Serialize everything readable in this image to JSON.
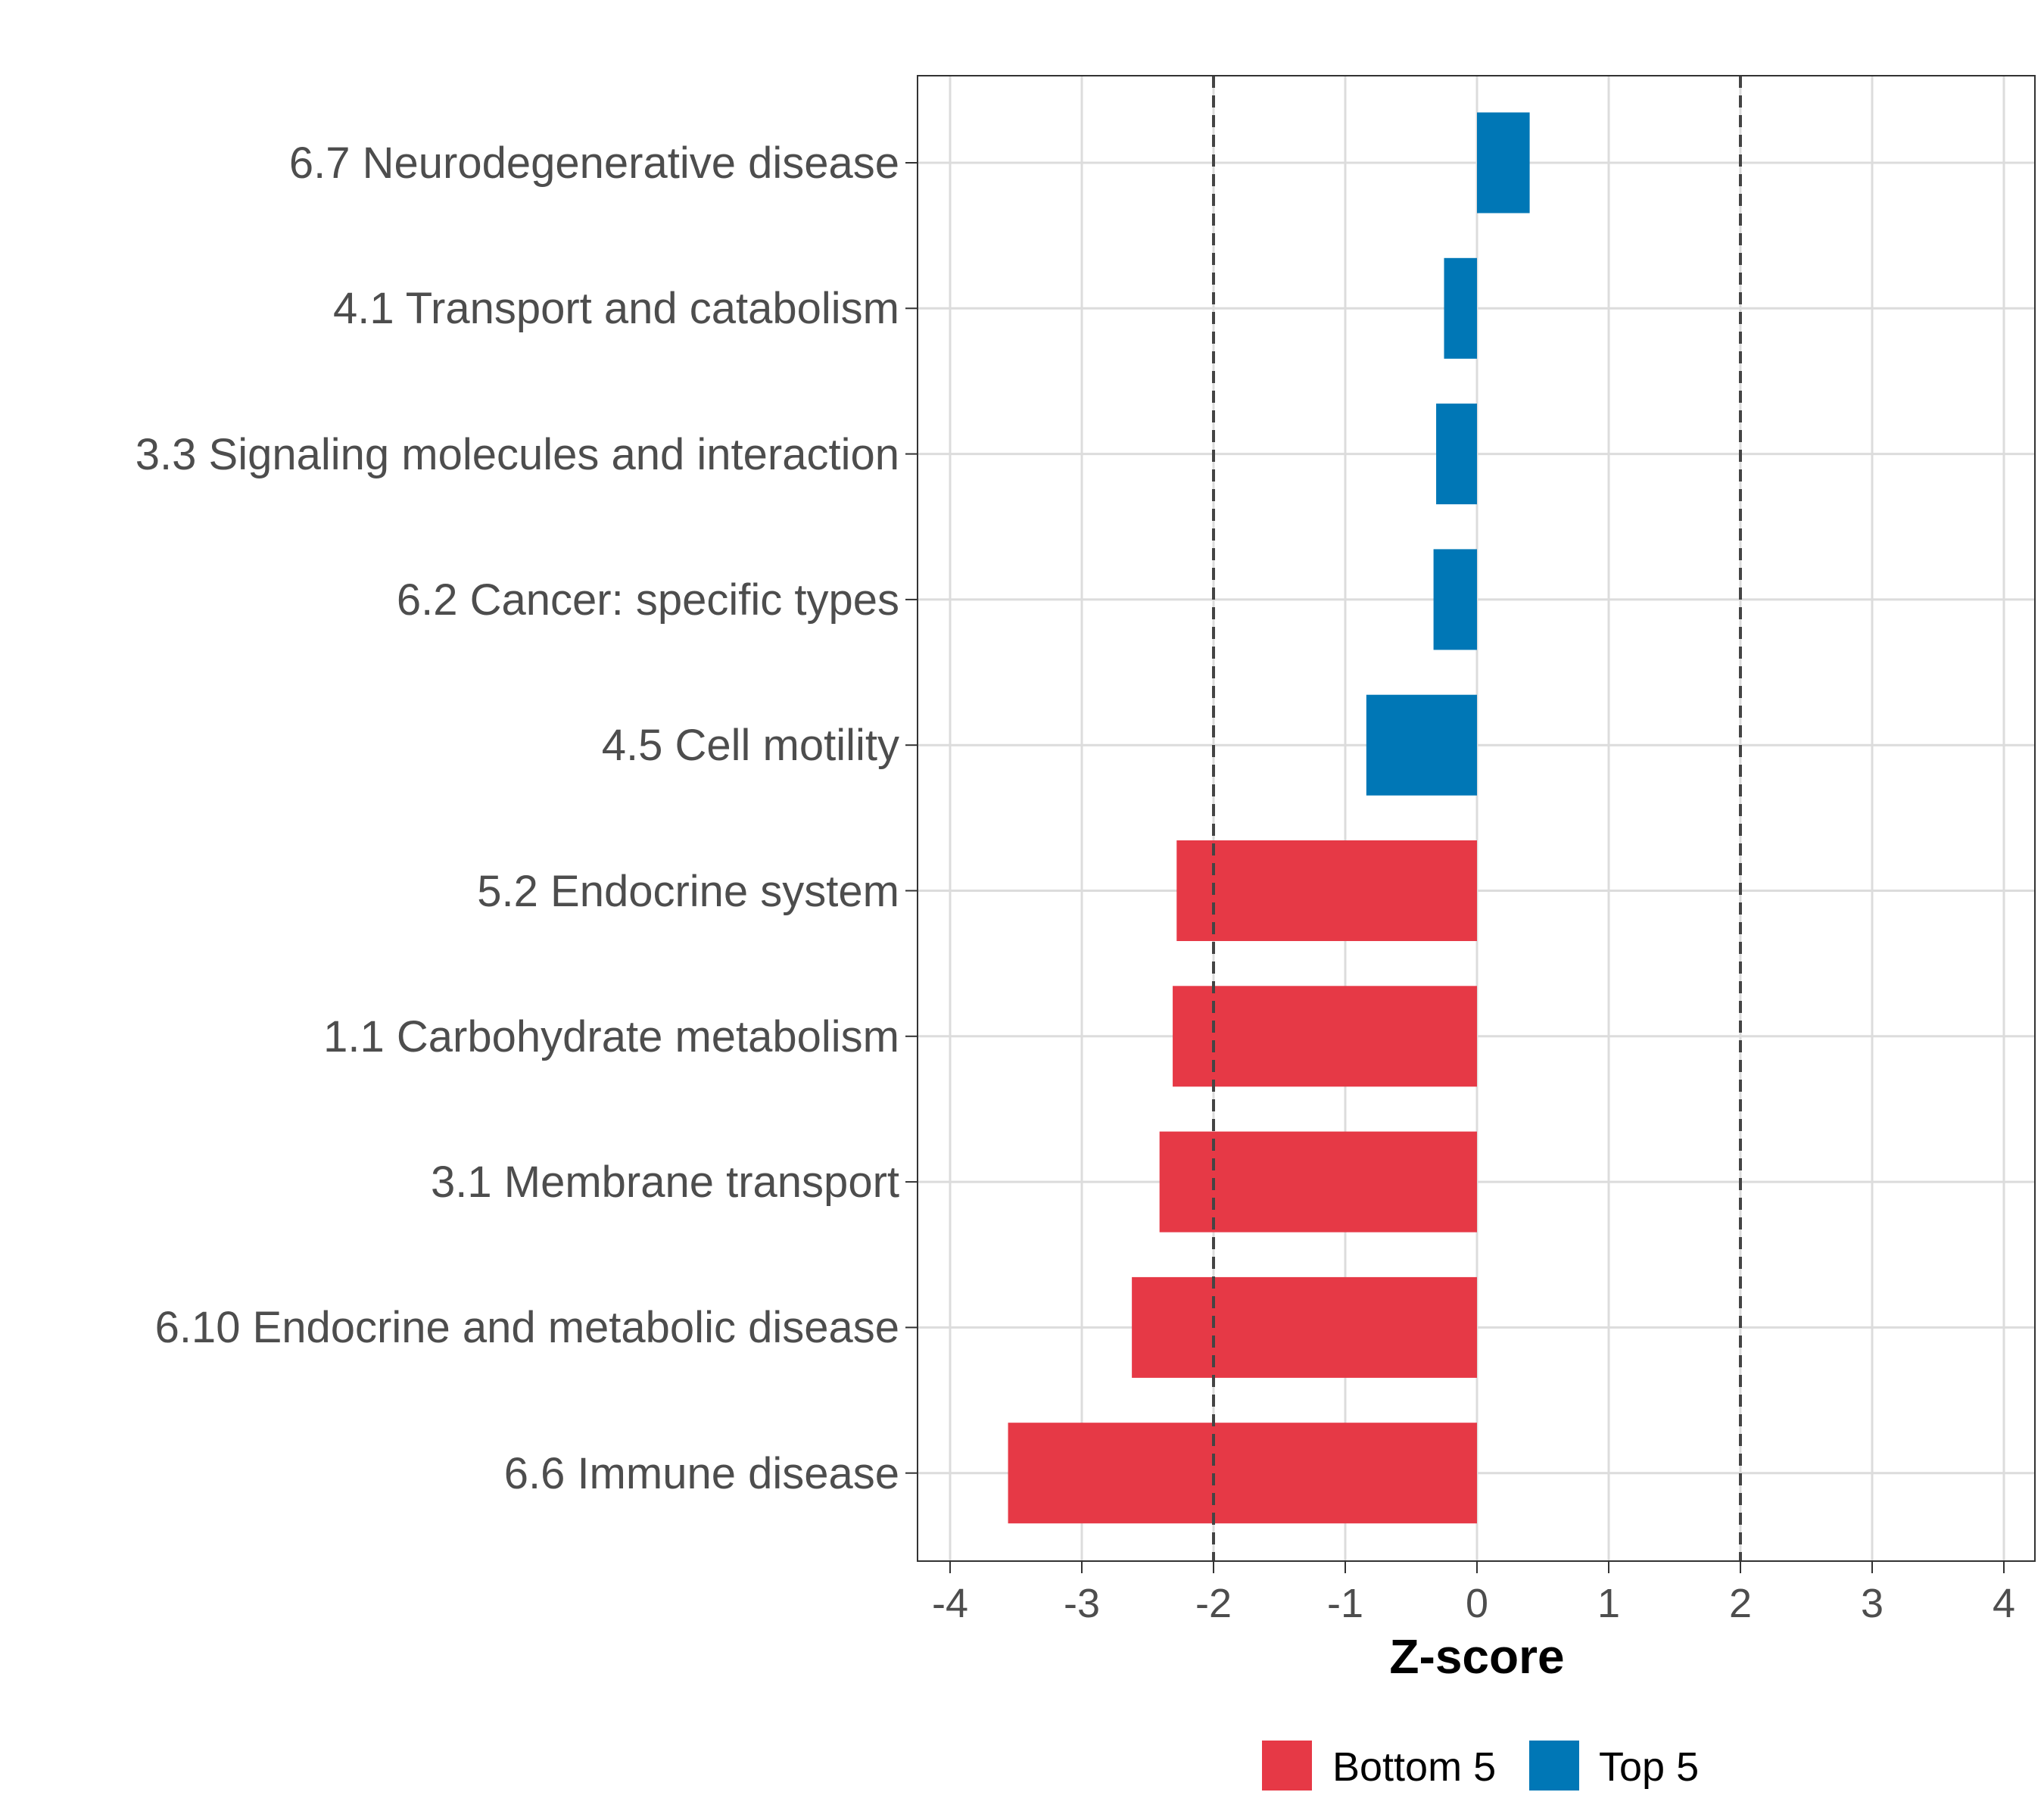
{
  "chart_data": {
    "type": "bar",
    "orientation": "horizontal",
    "title": "",
    "xlabel": "Z-score",
    "ylabel": "",
    "xlim": [
      -4.25,
      4.25
    ],
    "x_ticks": [
      -4,
      -3,
      -2,
      -1,
      0,
      1,
      2,
      3,
      4
    ],
    "x_tick_labels": [
      "-4",
      "-3",
      "-2",
      "-1",
      "0",
      "1",
      "2",
      "3",
      "4"
    ],
    "reference_lines": [
      -2,
      2
    ],
    "grid": true,
    "legend_position": "bottom",
    "categories": [
      "6.7 Neurodegenerative disease",
      "4.1 Transport and catabolism",
      "3.3 Signaling molecules and interaction",
      "6.2 Cancer: specific types",
      "4.5 Cell motility",
      "5.2 Endocrine system",
      "1.1 Carbohydrate metabolism",
      "3.1 Membrane transport",
      "6.10 Endocrine and metabolic disease",
      "6.6 Immune disease"
    ],
    "values": [
      0.4,
      -0.25,
      -0.31,
      -0.33,
      -0.84,
      -2.28,
      -2.31,
      -2.41,
      -2.62,
      -3.56
    ],
    "groups": [
      "Top 5",
      "Top 5",
      "Top 5",
      "Top 5",
      "Top 5",
      "Bottom 5",
      "Bottom 5",
      "Bottom 5",
      "Bottom 5",
      "Bottom 5"
    ],
    "legend": [
      {
        "name": "Bottom 5",
        "color": "#E63946"
      },
      {
        "name": "Top 5",
        "color": "#0077B6"
      }
    ]
  }
}
